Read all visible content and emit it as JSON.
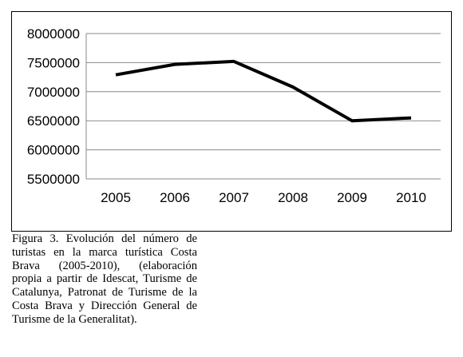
{
  "caption": "Figura 3. Evolución del número de turistas en la marca turística Costa Brava (2005-2010), (elaboración propia a partir de Idescat, Turisme de Catalunya, Patronat de Turisme de la Costa Brava y Dirección General de Turisme de la Generalitat).",
  "chart_data": {
    "type": "line",
    "title": "",
    "xlabel": "",
    "ylabel": "",
    "categories": [
      "2005",
      "2006",
      "2007",
      "2008",
      "2009",
      "2010"
    ],
    "series": [
      {
        "values": [
          7290000,
          7470000,
          7520000,
          7080000,
          6500000,
          6550000
        ],
        "color": "#000000"
      }
    ],
    "ylim": [
      5500000,
      8000000
    ],
    "yticks": [
      "5500000",
      "6000000",
      "6500000",
      "7000000",
      "7500000",
      "8000000"
    ],
    "grid": true,
    "legend": "none"
  }
}
